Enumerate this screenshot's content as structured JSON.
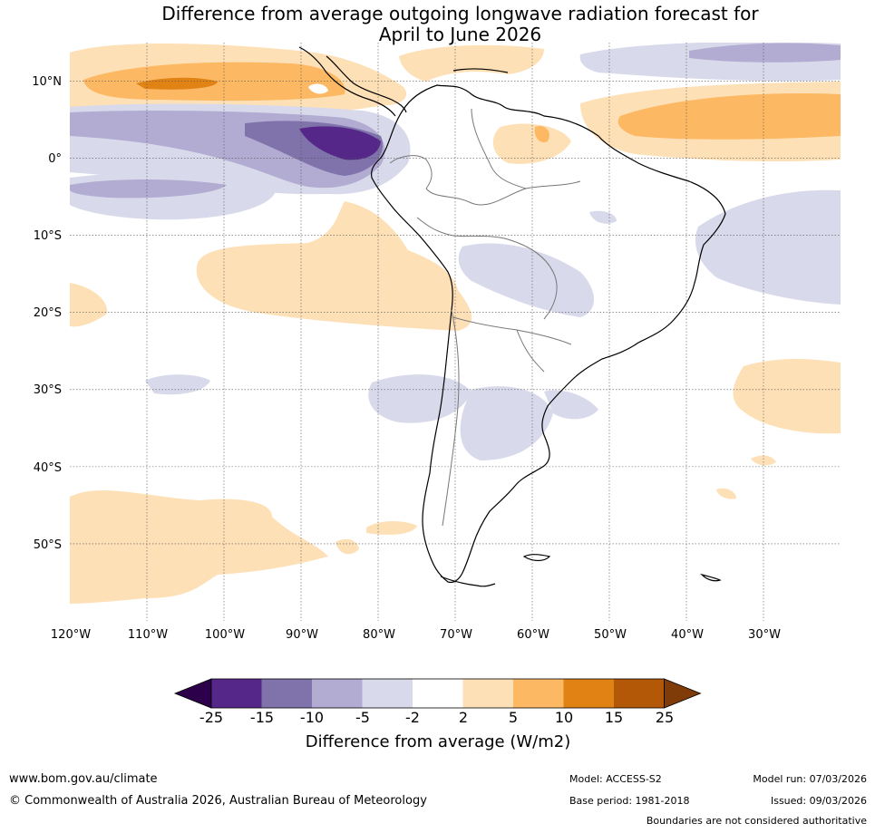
{
  "title": {
    "line1": "Difference from average outgoing longwave radiation forecast for",
    "line2": "April to June 2026"
  },
  "axes": {
    "lat_ticks": [
      "10°N",
      "0°",
      "10°S",
      "20°S",
      "30°S",
      "40°S",
      "50°S"
    ],
    "lon_ticks": [
      "120°W",
      "110°W",
      "100°W",
      "90°W",
      "80°W",
      "70°W",
      "60°W",
      "50°W",
      "40°W",
      "30°W"
    ],
    "lat_range": [
      -60,
      15
    ],
    "lon_range": [
      -120,
      -20
    ]
  },
  "legend": {
    "title": "Difference from average (W/m2)",
    "boundaries": [
      "-25",
      "-15",
      "-10",
      "-5",
      "-2",
      "2",
      "5",
      "10",
      "15",
      "25"
    ],
    "colors": [
      "#2d004b",
      "#542788",
      "#8073ac",
      "#b2abd2",
      "#d8daeb",
      "#ffffff",
      "#fee0b6",
      "#fdb863",
      "#e08214",
      "#b35806",
      "#7f3b08"
    ],
    "extend": "both"
  },
  "map_regions": {
    "ocean_anomaly_bands": [
      {
        "area": "Caribbean / eastern Pacific near 10°N",
        "category": "5 to 15",
        "sign": "positive"
      },
      {
        "area": "Equatorial eastern Pacific near 0°–5°N, 80°W–90°W",
        "category": "-15 to -10",
        "sign": "negative"
      },
      {
        "area": "Southeast Pacific off Peru and Chile",
        "category": "2 to 5",
        "sign": "positive"
      },
      {
        "area": "Tropical Atlantic near 5°N",
        "category": "5 to 10",
        "sign": "positive"
      },
      {
        "area": "Southwest Atlantic east of Brazil",
        "category": "-5 to -2",
        "sign": "negative"
      }
    ]
  },
  "footer": {
    "website": "www.bom.gov.au/climate",
    "copyright": "© Commonwealth of Australia 2026, Australian Bureau of Meteorology",
    "model": "Model: ACCESS-S2",
    "base_period": "Base period: 1981-2018",
    "model_run": "Model run: 07/03/2026",
    "issued": "Issued: 09/03/2026",
    "note": "Boundaries are not considered authoritative"
  }
}
